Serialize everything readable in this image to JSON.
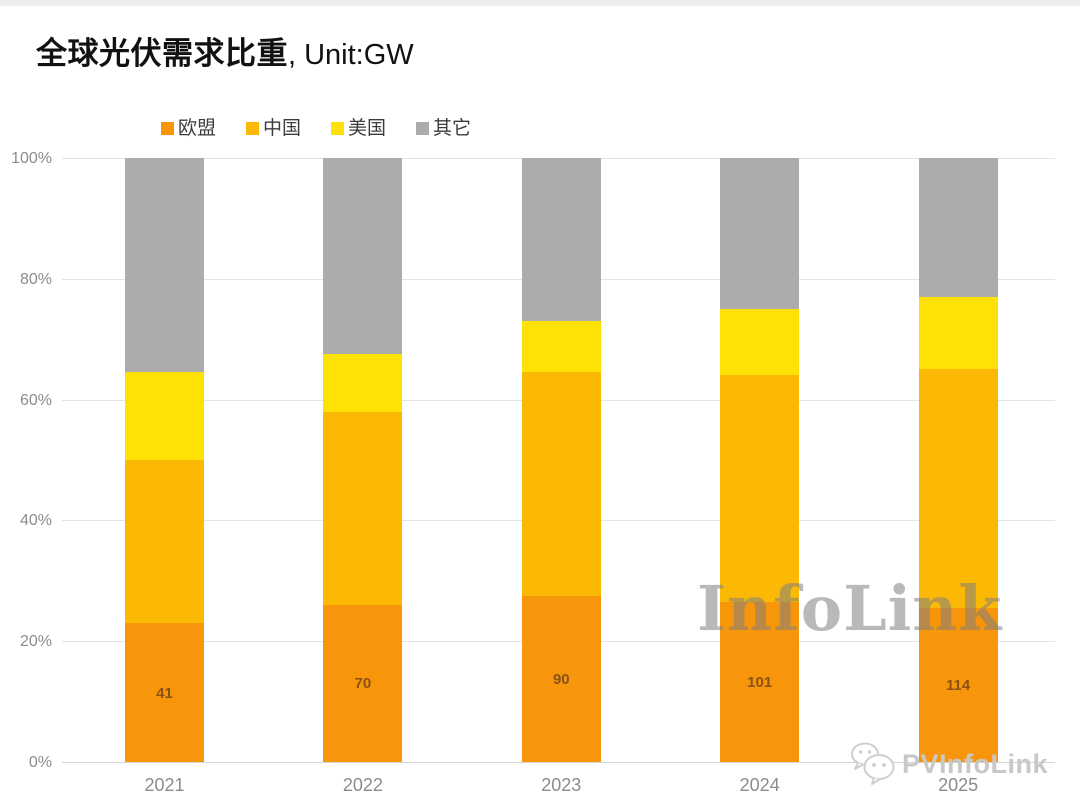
{
  "title": {
    "main": "全球光伏需求比重",
    "unit": ", Unit:GW"
  },
  "watermark": {
    "center_text": "InfoLink",
    "footer_text": "PVInfoLink"
  },
  "colors": {
    "eu": "#F8960B",
    "china": "#FBB905",
    "us": "#FFE205",
    "others": "#ACACAC",
    "gridline": "#e4e4e4",
    "axis_text": "#8c8c8c",
    "segment_label_text": "#8a5315",
    "watermark_gray": "rgba(128,128,128,0.55)"
  },
  "chart_data": {
    "type": "bar",
    "stacked": true,
    "title": "全球光伏需求比重, Unit:GW",
    "xlabel": "",
    "ylabel": "",
    "ylim": [
      0,
      100
    ],
    "grid": true,
    "legend_position": "top",
    "categories": [
      "2021",
      "2022",
      "2023",
      "2024",
      "2025"
    ],
    "y_ticks": [
      "0%",
      "20%",
      "40%",
      "60%",
      "80%",
      "100%"
    ],
    "y_tick_values": [
      0,
      20,
      40,
      60,
      80,
      100
    ],
    "series": [
      {
        "name": "欧盟",
        "color": "#F8960B",
        "values_pct": [
          23,
          26,
          27.5,
          26.5,
          25.5
        ],
        "labels_gw": [
          "41",
          "70",
          "90",
          "101",
          "114"
        ]
      },
      {
        "name": "中国",
        "color": "#FBB905",
        "values_pct": [
          27,
          32,
          37,
          37.5,
          39.5
        ]
      },
      {
        "name": "美国",
        "color": "#FFE205",
        "values_pct": [
          14.5,
          9.5,
          8.5,
          11,
          12
        ]
      },
      {
        "name": "其它",
        "color": "#ACACAC",
        "values_pct": [
          35.5,
          32.5,
          27,
          25,
          23
        ]
      }
    ]
  }
}
